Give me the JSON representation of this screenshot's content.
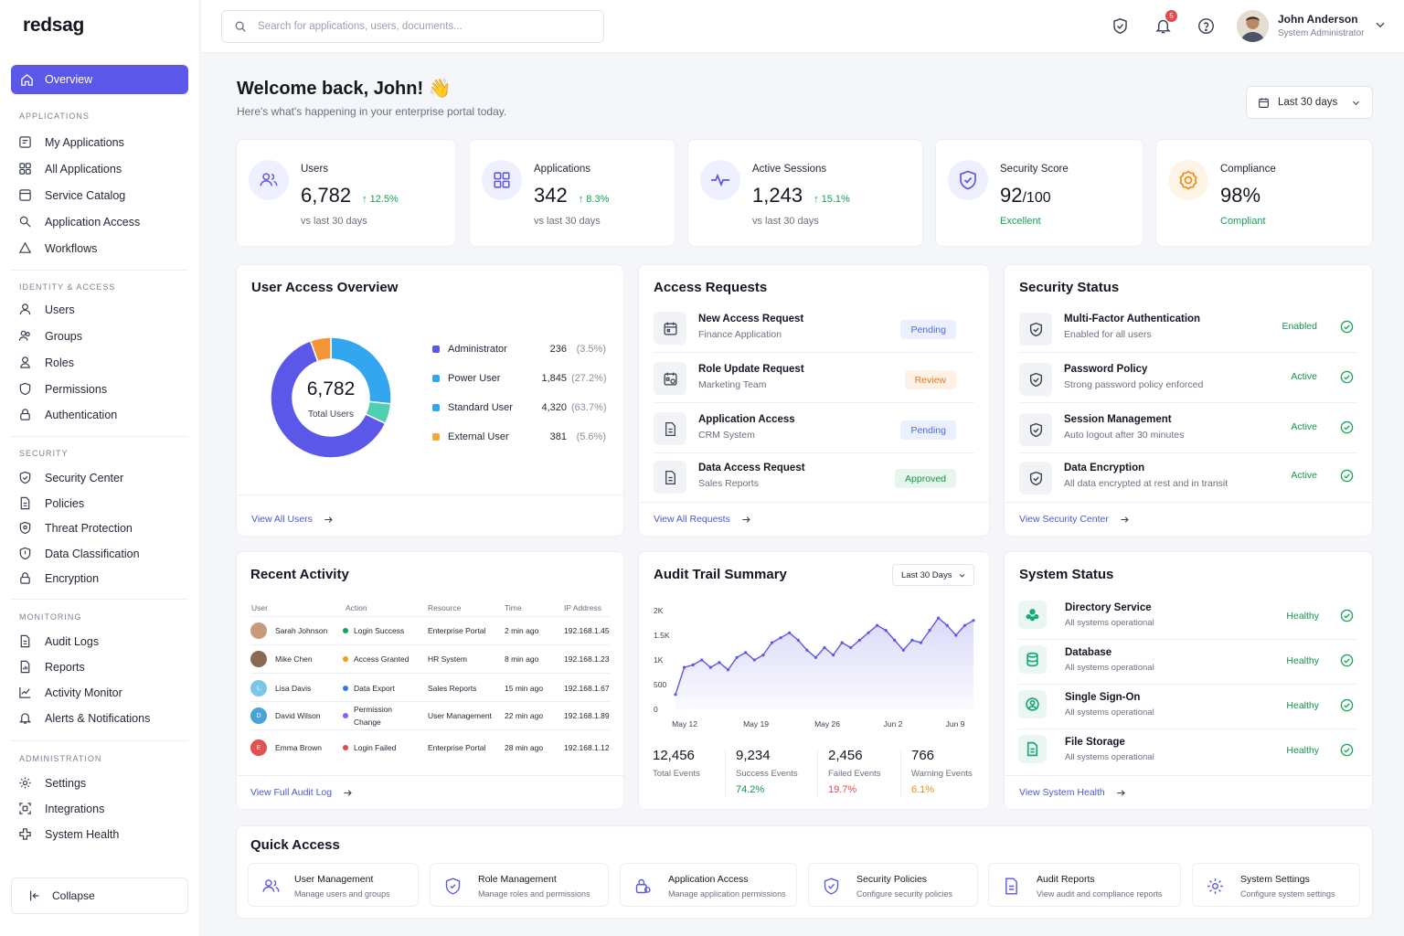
{
  "app": {
    "name": "redsag"
  },
  "sidebar": {
    "active_item": "Overview",
    "sections": [
      {
        "title": "APPLICATIONS",
        "items": [
          "My Applications",
          "All Applications",
          "Service Catalog",
          "Application Access",
          "Workflows"
        ]
      },
      {
        "title": "IDENTITY & ACCESS",
        "items": [
          "Users",
          "Groups",
          "Roles",
          "Permissions",
          "Authentication"
        ]
      },
      {
        "title": "SECURITY",
        "items": [
          "Security Center",
          "Policies",
          "Threat Protection",
          "Data Classification",
          "Encryption"
        ]
      },
      {
        "title": "MONITORING",
        "items": [
          "Audit Logs",
          "Reports",
          "Activity Monitor",
          "Alerts & Notifications"
        ]
      },
      {
        "title": "ADMINISTRATION",
        "items": [
          "Settings",
          "Integrations",
          "System Health"
        ]
      }
    ],
    "collapse_label": "Collapse"
  },
  "topbar": {
    "search_placeholder": "Search for applications, users, documents...",
    "notification_count": "5",
    "user_name": "John Anderson",
    "user_role": "System Administrator"
  },
  "header": {
    "welcome": "Welcome back, John! 👋",
    "subtitle": "Here's what's happening in your enterprise portal today.",
    "range_label": "Last 30 days"
  },
  "stats": [
    {
      "label": "Users",
      "value": "6,782",
      "change": "↑ 12.5%",
      "foot": "vs last 30 days",
      "icon": "users-icon"
    },
    {
      "label": "Applications",
      "value": "342",
      "change": "↑ 8.3%",
      "foot": "vs last 30 days",
      "icon": "grid-icon"
    },
    {
      "label": "Active Sessions",
      "value": "1,243",
      "change": "↑ 15.1%",
      "foot": "vs last 30 days",
      "icon": "pulse-icon"
    },
    {
      "label": "Security Score",
      "value": "92",
      "value_suffix": "/100",
      "foot": "Excellent",
      "icon": "shield-check-icon"
    },
    {
      "label": "Compliance",
      "value": "98%",
      "foot": "Compliant",
      "icon": "badge-icon"
    }
  ],
  "user_access": {
    "title": "User Access Overview",
    "center_value": "6,782",
    "center_label": "Total Users",
    "link": "View All Users",
    "chart_data": {
      "type": "pie",
      "categories": [
        "Administrator",
        "Power User",
        "Standard User",
        "External User"
      ],
      "values": [
        236,
        1845,
        4320,
        381
      ],
      "percent_labels": [
        "(3.5%)",
        "(27.2%)",
        "(63.7%)",
        "(5.6%)"
      ],
      "value_labels": [
        "236",
        "1,845",
        "4,320",
        "381"
      ],
      "colors": [
        "#5b57e8",
        "#33a6f0",
        "#5b57e8",
        "#f4a83a"
      ]
    },
    "slice_colors": {
      "power": "#33a6f0",
      "teal": "#4fcfb0",
      "standard": "#5b57e8",
      "external": "#f59438"
    },
    "legend_colors": [
      "#5b57e8",
      "#33a6f0",
      "#33a6f0",
      "#f4a83a"
    ]
  },
  "access_requests": {
    "title": "Access Requests",
    "link": "View All Requests",
    "items": [
      {
        "title": "New Access Request",
        "sub": "Finance Application",
        "status": "Pending",
        "kind": "pending"
      },
      {
        "title": "Role Update Request",
        "sub": "Marketing Team",
        "status": "Review",
        "kind": "review"
      },
      {
        "title": "Application Access",
        "sub": "CRM System",
        "status": "Pending",
        "kind": "pending"
      },
      {
        "title": "Data Access Request",
        "sub": "Sales Reports",
        "status": "Approved",
        "kind": "approved"
      }
    ]
  },
  "security_status": {
    "title": "Security Status",
    "link": "View Security Center",
    "items": [
      {
        "title": "Multi-Factor Authentication",
        "sub": "Enabled for all users",
        "state": "Enabled"
      },
      {
        "title": "Password Policy",
        "sub": "Strong password policy enforced",
        "state": "Active"
      },
      {
        "title": "Session Management",
        "sub": "Auto logout after 30 minutes",
        "state": "Active"
      },
      {
        "title": "Data Encryption",
        "sub": "All data encrypted at rest and in transit",
        "state": "Active"
      }
    ]
  },
  "recent_activity": {
    "title": "Recent Activity",
    "link": "View Full Audit Log",
    "columns": [
      "User",
      "Action",
      "Resource",
      "Time",
      "IP Address"
    ],
    "rows": [
      {
        "user": "Sarah Johnson",
        "initial": "",
        "avatar_color": "#c79a7d",
        "action": "Login Success",
        "dot": "#15a454",
        "resource": "Enterprise Portal",
        "time": "2 min ago",
        "ip": "192.168.1.45"
      },
      {
        "user": "Mike Chen",
        "initial": "",
        "avatar_color": "#8a6a55",
        "action": "Access Granted",
        "dot": "#f59e0b",
        "resource": "HR System",
        "time": "8 min ago",
        "ip": "192.168.1.23"
      },
      {
        "user": "Lisa Davis",
        "initial": "L",
        "avatar_color": "#7cc7e8",
        "action": "Data Export",
        "dot": "#2f7de1",
        "resource": "Sales Reports",
        "time": "15 min ago",
        "ip": "192.168.1.67"
      },
      {
        "user": "David Wilson",
        "initial": "D",
        "avatar_color": "#4aa3d8",
        "action": "Permission Change",
        "dot": "#8b5cf6",
        "resource": "User Management",
        "time": "22 min ago",
        "ip": "192.168.1.89"
      },
      {
        "user": "Emma Brown",
        "initial": "E",
        "avatar_color": "#e0524f",
        "action": "Login Failed",
        "dot": "#e5484d",
        "resource": "Enterprise Portal",
        "time": "28 min ago",
        "ip": "192.168.1.12"
      }
    ]
  },
  "audit": {
    "title": "Audit Trail Summary",
    "range": "Last 30 Days",
    "chart_data": {
      "type": "area",
      "x_tick_labels": [
        "May 12",
        "May 19",
        "May 26",
        "Jun 2",
        "Jun 9"
      ],
      "y_tick_labels": [
        "2K",
        "1.5K",
        "1K",
        "500",
        "0"
      ],
      "ylim": [
        0,
        2000
      ],
      "values": [
        300,
        850,
        900,
        1000,
        850,
        950,
        800,
        1050,
        1150,
        1000,
        1100,
        1350,
        1450,
        1550,
        1400,
        1200,
        1050,
        1250,
        1100,
        1350,
        1250,
        1400,
        1550,
        1700,
        1600,
        1400,
        1200,
        1400,
        1350,
        1600,
        1850,
        1700,
        1500,
        1700,
        1800
      ],
      "line_color": "#5b57e8"
    },
    "summary": [
      {
        "value": "12,456",
        "label": "Total Events",
        "pct": "",
        "color": "#141722"
      },
      {
        "value": "9,234",
        "label": "Success Events",
        "pct": "74.2%",
        "color": "#15924a"
      },
      {
        "value": "2,456",
        "label": "Failed Events",
        "pct": "19.7%",
        "color": "#e5484d"
      },
      {
        "value": "766",
        "label": "Warning Events",
        "pct": "6.1%",
        "color": "#f08c1a"
      }
    ]
  },
  "system_status": {
    "title": "System Status",
    "link": "View System Health",
    "items": [
      {
        "title": "Directory Service",
        "sub": "All systems operational",
        "state": "Healthy",
        "icon": "directory-icon"
      },
      {
        "title": "Database",
        "sub": "All systems operational",
        "state": "Healthy",
        "icon": "database-icon"
      },
      {
        "title": "Single Sign-On",
        "sub": "All systems operational",
        "state": "Healthy",
        "icon": "sso-icon"
      },
      {
        "title": "File Storage",
        "sub": "All systems operational",
        "state": "Healthy",
        "icon": "file-storage-icon"
      }
    ]
  },
  "quick_access": {
    "title": "Quick Access",
    "items": [
      {
        "title": "User Management",
        "sub": "Manage users and groups",
        "icon": "users-icon"
      },
      {
        "title": "Role Management",
        "sub": "Manage roles and permissions",
        "icon": "role-shield-icon"
      },
      {
        "title": "Application Access",
        "sub": "Manage application permissions",
        "icon": "lock-app-icon"
      },
      {
        "title": "Security Policies",
        "sub": "Configure security policies",
        "icon": "shield-check-icon"
      },
      {
        "title": "Audit Reports",
        "sub": "View audit and compliance reports",
        "icon": "report-icon"
      },
      {
        "title": "System Settings",
        "sub": "Configure system settings",
        "icon": "gear-icon"
      }
    ]
  }
}
